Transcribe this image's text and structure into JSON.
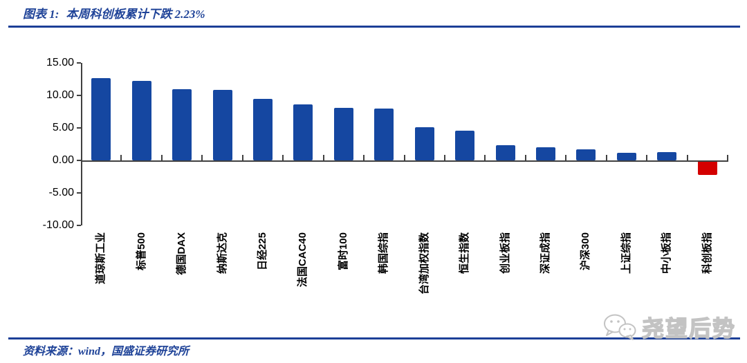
{
  "header": {
    "caption_label": "图表 1:",
    "caption_title": "本周科创板累计下跌 2.23%"
  },
  "chart_data": {
    "type": "bar",
    "title": "本周科创板累计下跌 2.23%",
    "categories": [
      "道琼斯工业",
      "标普500",
      "德国DAX",
      "纳斯达克",
      "日经225",
      "法国CAC40",
      "富时100",
      "韩国综指",
      "台湾加权指数",
      "恒生指数",
      "创业板指",
      "深证成指",
      "沪深300",
      "上证综指",
      "中小板指",
      "科创板指"
    ],
    "values": [
      12.7,
      12.2,
      11.0,
      10.8,
      9.5,
      8.6,
      8.1,
      8.0,
      5.1,
      4.6,
      2.3,
      2.0,
      1.7,
      1.2,
      1.3,
      -2.23
    ],
    "xlabel": "",
    "ylabel": "",
    "ylim": [
      -10,
      15
    ],
    "ytick_labels": [
      "15.00",
      "10.00",
      "5.00",
      "0.00",
      "-5.00",
      "-10.00"
    ],
    "yticks": [
      15,
      10,
      5,
      0,
      -5,
      -10
    ],
    "grid": false,
    "legend": false,
    "colors": {
      "positive_bar": "#1547a1",
      "negative_bar": "#d40000",
      "axis": "#404040",
      "tick_text": "#000000"
    }
  },
  "footer": {
    "source": "资料来源：wind，国盛证券研究所"
  },
  "watermark": {
    "text": "尧望后势",
    "icon": "wechat-icon"
  },
  "theme": {
    "accent_blue": "#1c3f97",
    "title_blue": "#1f4398",
    "watermark_gray": "#c3c3c3"
  }
}
